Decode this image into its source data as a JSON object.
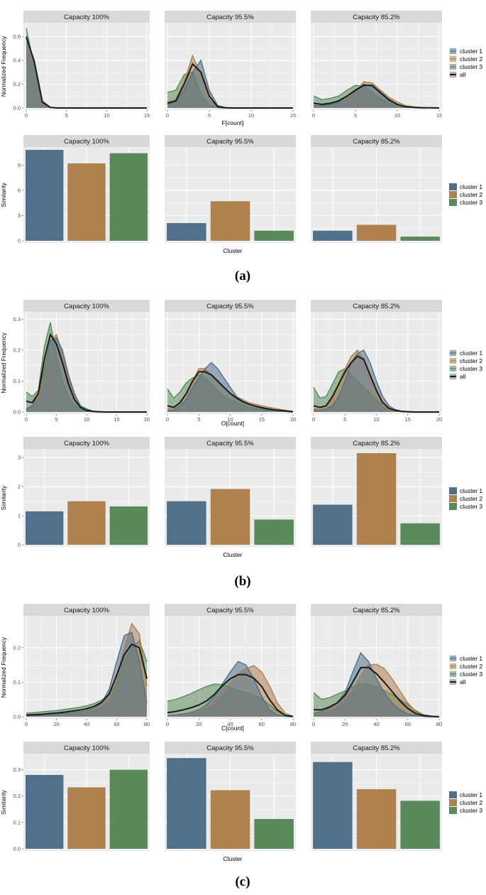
{
  "colors": {
    "cluster 1": "#51708a",
    "cluster 2": "#b0804f",
    "cluster 3": "#5a8a5c",
    "all": "#1a1a1a",
    "panel_bg": "#ebebeb",
    "strip_bg": "#d9d9d9",
    "grid": "#ffffff"
  },
  "chart_data": [
    {
      "id": "a-freq",
      "group": "a",
      "type": "area",
      "facets": [
        "Capacity 100%",
        "Capacity 95.5%",
        "Capacity 85.2%"
      ],
      "xlabel": "F[count]",
      "ylabel": "Normalized Frequency",
      "xlim": [
        0,
        15
      ],
      "ylim": [
        0,
        0.68
      ],
      "xticks": [
        0,
        5,
        10,
        15
      ],
      "yticks": [
        0.0,
        0.2,
        0.4,
        0.6
      ],
      "ytick_labels": [
        "0.0",
        "0.2",
        "0.4",
        "0.6"
      ],
      "x": [
        0,
        1,
        2,
        3,
        4,
        5,
        6,
        7,
        8,
        9,
        10,
        11,
        12,
        13,
        14,
        15
      ],
      "series_names": [
        "cluster 1",
        "cluster 2",
        "cluster 3",
        "all"
      ],
      "legend": [
        "cluster 1",
        "cluster 2",
        "cluster 3",
        "all"
      ],
      "data": [
        [
          [
            0.58,
            0.4,
            0.05,
            0.006,
            0,
            0,
            0,
            0,
            0,
            0,
            0,
            0,
            0,
            0,
            0,
            0
          ],
          [
            0.54,
            0.4,
            0.06,
            0.006,
            0,
            0,
            0,
            0,
            0,
            0,
            0,
            0,
            0,
            0,
            0,
            0
          ],
          [
            0.67,
            0.35,
            0.04,
            0.004,
            0,
            0,
            0,
            0,
            0,
            0,
            0,
            0,
            0,
            0,
            0,
            0
          ],
          [
            0.6,
            0.39,
            0.05,
            0.005,
            0,
            0,
            0,
            0,
            0,
            0,
            0,
            0,
            0,
            0,
            0,
            0
          ]
        ],
        [
          [
            0.03,
            0.05,
            0.15,
            0.3,
            0.4,
            0.15,
            0.02,
            0.003,
            0,
            0,
            0,
            0,
            0,
            0,
            0,
            0
          ],
          [
            0.05,
            0.07,
            0.22,
            0.44,
            0.28,
            0.07,
            0.01,
            0.002,
            0,
            0,
            0,
            0,
            0,
            0,
            0,
            0
          ],
          [
            0.13,
            0.15,
            0.28,
            0.3,
            0.12,
            0.02,
            0.003,
            0,
            0,
            0,
            0,
            0,
            0,
            0,
            0,
            0
          ],
          [
            0.04,
            0.06,
            0.2,
            0.37,
            0.3,
            0.1,
            0.01,
            0.002,
            0,
            0,
            0,
            0,
            0,
            0,
            0,
            0
          ]
        ],
        [
          [
            0.02,
            0.02,
            0.03,
            0.05,
            0.1,
            0.14,
            0.2,
            0.18,
            0.12,
            0.06,
            0.03,
            0.01,
            0.005,
            0.002,
            0.001,
            0
          ],
          [
            0.02,
            0.02,
            0.03,
            0.05,
            0.09,
            0.14,
            0.22,
            0.21,
            0.15,
            0.09,
            0.05,
            0.02,
            0.01,
            0.005,
            0.002,
            0
          ],
          [
            0.1,
            0.07,
            0.08,
            0.1,
            0.15,
            0.19,
            0.18,
            0.13,
            0.08,
            0.04,
            0.02,
            0.01,
            0.005,
            0.002,
            0.001,
            0
          ],
          [
            0.04,
            0.03,
            0.04,
            0.06,
            0.1,
            0.15,
            0.19,
            0.19,
            0.13,
            0.07,
            0.03,
            0.01,
            0.005,
            0.002,
            0.001,
            0
          ]
        ]
      ]
    },
    {
      "id": "a-sim",
      "group": "a",
      "type": "bar",
      "facets": [
        "Capacity 100%",
        "Capacity 95.5%",
        "Capacity 85.2%"
      ],
      "xlabel": "Cluster",
      "ylabel": "Similarity",
      "ylim": [
        0,
        10.8
      ],
      "yticks": [
        0,
        3,
        6,
        9
      ],
      "ytick_labels": [
        "0",
        "3",
        "6",
        "9"
      ],
      "categories": [
        "cluster 1",
        "cluster 2",
        "cluster 3"
      ],
      "legend": [
        "cluster 1",
        "cluster 2",
        "cluster 3"
      ],
      "values": [
        [
          10.8,
          9.2,
          10.4
        ],
        [
          2.1,
          4.7,
          1.2
        ],
        [
          1.2,
          1.9,
          0.5
        ]
      ]
    },
    {
      "id": "b-freq",
      "group": "b",
      "type": "area",
      "facets": [
        "Capacity 100%",
        "Capacity 95.5%",
        "Capacity 85.2%"
      ],
      "xlabel": "O[count]",
      "ylabel": "Normalized Frequency",
      "xlim": [
        0,
        20
      ],
      "ylim": [
        0,
        0.31
      ],
      "xticks": [
        0,
        5,
        10,
        15,
        20
      ],
      "yticks": [
        0.0,
        0.1,
        0.2,
        0.3
      ],
      "ytick_labels": [
        "0.0",
        "0.1",
        "0.2",
        "0.3"
      ],
      "x": [
        0,
        1,
        2,
        3,
        4,
        5,
        6,
        7,
        8,
        9,
        10,
        11,
        12,
        13,
        14,
        15,
        16,
        17,
        18,
        19,
        20
      ],
      "series_names": [
        "cluster 1",
        "cluster 2",
        "cluster 3",
        "all"
      ],
      "legend": [
        "cluster 1",
        "cluster 2",
        "cluster 3",
        "all"
      ],
      "data": [
        [
          [
            0.01,
            0.02,
            0.06,
            0.14,
            0.23,
            0.24,
            0.2,
            0.12,
            0.06,
            0.02,
            0.01,
            0.003,
            0.001,
            0,
            0,
            0,
            0,
            0,
            0,
            0,
            0
          ],
          [
            0.01,
            0.02,
            0.05,
            0.13,
            0.23,
            0.25,
            0.19,
            0.11,
            0.05,
            0.02,
            0.01,
            0.003,
            0.001,
            0,
            0,
            0,
            0,
            0,
            0,
            0,
            0
          ],
          [
            0.065,
            0.05,
            0.07,
            0.21,
            0.29,
            0.18,
            0.1,
            0.05,
            0.02,
            0.01,
            0.003,
            0.001,
            0,
            0,
            0,
            0,
            0,
            0,
            0,
            0,
            0
          ],
          [
            0.035,
            0.03,
            0.06,
            0.17,
            0.25,
            0.22,
            0.16,
            0.09,
            0.04,
            0.015,
            0.005,
            0.002,
            0.001,
            0,
            0,
            0,
            0,
            0,
            0,
            0,
            0
          ]
        ],
        [
          [
            0.005,
            0.005,
            0.02,
            0.04,
            0.08,
            0.11,
            0.14,
            0.16,
            0.14,
            0.11,
            0.08,
            0.05,
            0.035,
            0.025,
            0.018,
            0.012,
            0.008,
            0.006,
            0.004,
            0.002,
            0.001
          ],
          [
            0.01,
            0.01,
            0.03,
            0.06,
            0.1,
            0.14,
            0.14,
            0.12,
            0.1,
            0.08,
            0.06,
            0.05,
            0.04,
            0.03,
            0.025,
            0.02,
            0.016,
            0.012,
            0.008,
            0.005,
            0.002
          ],
          [
            0.075,
            0.045,
            0.065,
            0.095,
            0.11,
            0.12,
            0.11,
            0.09,
            0.07,
            0.05,
            0.04,
            0.03,
            0.022,
            0.016,
            0.012,
            0.008,
            0.005,
            0.003,
            0.002,
            0.001,
            0
          ],
          [
            0.02,
            0.015,
            0.03,
            0.06,
            0.1,
            0.13,
            0.13,
            0.12,
            0.1,
            0.08,
            0.06,
            0.045,
            0.033,
            0.025,
            0.019,
            0.014,
            0.01,
            0.007,
            0.005,
            0.003,
            0.001
          ]
        ],
        [
          [
            0.005,
            0.005,
            0.01,
            0.02,
            0.05,
            0.1,
            0.16,
            0.19,
            0.2,
            0.16,
            0.1,
            0.05,
            0.02,
            0.008,
            0.003,
            0.001,
            0,
            0,
            0,
            0,
            0
          ],
          [
            0.01,
            0.01,
            0.02,
            0.04,
            0.09,
            0.14,
            0.18,
            0.2,
            0.17,
            0.11,
            0.06,
            0.02,
            0.008,
            0.003,
            0.001,
            0,
            0,
            0,
            0,
            0,
            0
          ],
          [
            0.08,
            0.045,
            0.05,
            0.09,
            0.13,
            0.14,
            0.12,
            0.1,
            0.08,
            0.06,
            0.04,
            0.02,
            0.01,
            0.005,
            0.002,
            0.001,
            0,
            0,
            0,
            0,
            0
          ],
          [
            0.02,
            0.015,
            0.02,
            0.05,
            0.09,
            0.13,
            0.16,
            0.18,
            0.17,
            0.12,
            0.07,
            0.03,
            0.012,
            0.005,
            0.002,
            0.001,
            0,
            0,
            0,
            0,
            0
          ]
        ]
      ]
    },
    {
      "id": "b-sim",
      "group": "b",
      "type": "bar",
      "facets": [
        "Capacity 100%",
        "Capacity 95.5%",
        "Capacity 85.2%"
      ],
      "xlabel": "Cluster",
      "ylabel": "Similarity",
      "ylim": [
        0,
        3.2
      ],
      "yticks": [
        0,
        1,
        2,
        3
      ],
      "ytick_labels": [
        "0",
        "1",
        "2",
        "3"
      ],
      "categories": [
        "cluster 1",
        "cluster 2",
        "cluster 3"
      ],
      "legend": [
        "cluster 1",
        "cluster 2",
        "cluster 3"
      ],
      "values": [
        [
          1.15,
          1.5,
          1.32
        ],
        [
          1.5,
          1.92,
          0.87
        ],
        [
          1.38,
          3.15,
          0.74
        ]
      ]
    },
    {
      "id": "c-freq",
      "group": "c",
      "type": "area",
      "facets": [
        "Capacity 100%",
        "Capacity 95.5%",
        "Capacity 85.2%"
      ],
      "xlabel": "C[count]",
      "ylabel": "Normalized Frequency",
      "xlim": [
        0,
        80
      ],
      "ylim": [
        0,
        0.28
      ],
      "xticks": [
        0,
        20,
        40,
        60,
        80
      ],
      "yticks": [
        0.0,
        0.1,
        0.2
      ],
      "ytick_labels": [
        "0.0",
        "0.1",
        "0.2"
      ],
      "x": [
        0,
        5,
        10,
        15,
        20,
        25,
        30,
        35,
        40,
        45,
        50,
        55,
        60,
        65,
        70,
        75,
        80
      ],
      "series_names": [
        "cluster 1",
        "cluster 2",
        "cluster 3",
        "all"
      ],
      "legend": [
        "cluster 1",
        "cluster 2",
        "cluster 3",
        "all"
      ],
      "data": [
        [
          [
            0.002,
            0.003,
            0.004,
            0.005,
            0.007,
            0.009,
            0.011,
            0.014,
            0.018,
            0.025,
            0.04,
            0.08,
            0.16,
            0.235,
            0.245,
            0.16,
            0.04
          ],
          [
            0.002,
            0.003,
            0.004,
            0.005,
            0.006,
            0.008,
            0.01,
            0.012,
            0.015,
            0.02,
            0.03,
            0.05,
            0.11,
            0.2,
            0.27,
            0.24,
            0.09
          ],
          [
            0.01,
            0.012,
            0.014,
            0.016,
            0.018,
            0.021,
            0.024,
            0.027,
            0.032,
            0.038,
            0.048,
            0.065,
            0.1,
            0.16,
            0.2,
            0.22,
            0.16
          ],
          [
            0.005,
            0.006,
            0.007,
            0.009,
            0.011,
            0.013,
            0.016,
            0.019,
            0.023,
            0.03,
            0.042,
            0.066,
            0.12,
            0.18,
            0.21,
            0.2,
            0.11
          ]
        ],
        [
          [
            0.003,
            0.005,
            0.008,
            0.012,
            0.02,
            0.035,
            0.06,
            0.095,
            0.13,
            0.16,
            0.15,
            0.11,
            0.06,
            0.02,
            0.005,
            0.001,
            0
          ],
          [
            0.002,
            0.004,
            0.007,
            0.011,
            0.017,
            0.027,
            0.045,
            0.07,
            0.1,
            0.125,
            0.14,
            0.148,
            0.13,
            0.09,
            0.04,
            0.01,
            0.001
          ],
          [
            0.045,
            0.05,
            0.058,
            0.067,
            0.078,
            0.088,
            0.095,
            0.093,
            0.085,
            0.077,
            0.07,
            0.062,
            0.052,
            0.035,
            0.015,
            0.004,
            0.001
          ],
          [
            0.012,
            0.015,
            0.02,
            0.026,
            0.034,
            0.046,
            0.065,
            0.09,
            0.11,
            0.122,
            0.122,
            0.112,
            0.088,
            0.05,
            0.02,
            0.004,
            0.001
          ]
        ],
        [
          [
            0.01,
            0.015,
            0.025,
            0.04,
            0.07,
            0.13,
            0.185,
            0.16,
            0.11,
            0.07,
            0.04,
            0.02,
            0.008,
            0.003,
            0.001,
            0,
            0
          ],
          [
            0.01,
            0.013,
            0.02,
            0.03,
            0.05,
            0.08,
            0.12,
            0.15,
            0.152,
            0.14,
            0.11,
            0.075,
            0.04,
            0.015,
            0.004,
            0.001,
            0
          ],
          [
            0.07,
            0.05,
            0.055,
            0.065,
            0.075,
            0.088,
            0.095,
            0.094,
            0.087,
            0.076,
            0.064,
            0.05,
            0.035,
            0.018,
            0.006,
            0.002,
            0
          ],
          [
            0.02,
            0.02,
            0.028,
            0.04,
            0.062,
            0.1,
            0.142,
            0.143,
            0.125,
            0.1,
            0.073,
            0.046,
            0.024,
            0.009,
            0.003,
            0.001,
            0
          ]
        ]
      ]
    },
    {
      "id": "c-sim",
      "group": "c",
      "type": "bar",
      "facets": [
        "Capacity 100%",
        "Capacity 95.5%",
        "Capacity 85.2%"
      ],
      "xlabel": "Cluster",
      "ylabel": "Similarity",
      "ylim": [
        0,
        0.35
      ],
      "yticks": [
        0.0,
        0.1,
        0.2,
        0.3
      ],
      "ytick_labels": [
        "0.0",
        "0.1",
        "0.2",
        "0.3"
      ],
      "categories": [
        "cluster 1",
        "cluster 2",
        "cluster 3"
      ],
      "legend": [
        "cluster 1",
        "cluster 2",
        "cluster 3"
      ],
      "values": [
        [
          0.28,
          0.233,
          0.3
        ],
        [
          0.344,
          0.222,
          0.113
        ],
        [
          0.329,
          0.226,
          0.182
        ]
      ]
    }
  ],
  "panel_labels": [
    "(a)",
    "(b)",
    "(c)"
  ]
}
